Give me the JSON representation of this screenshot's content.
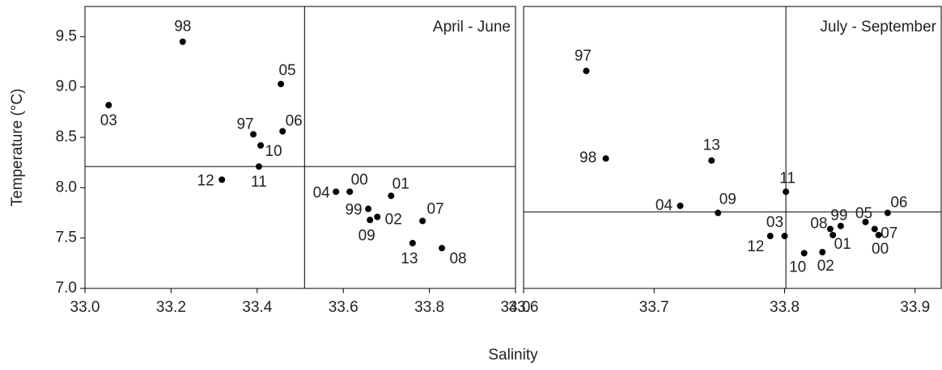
{
  "chart_data": [
    {
      "type": "scatter",
      "title": "April - June",
      "ylabel": "Temperature (°C)",
      "xlim": [
        33.0,
        34.0
      ],
      "ylim": [
        7.0,
        9.8
      ],
      "xticks": [
        {
          "value": 33.0,
          "label": "33.0"
        },
        33.2,
        33.4,
        33.6,
        33.8,
        {
          "value": 34.0,
          "label": "34.0"
        }
      ],
      "yticks": [
        {
          "value": 7.0,
          "label": "7.0"
        },
        7.5,
        {
          "value": 8.0,
          "label": "8.0"
        },
        8.5,
        {
          "value": 9.0,
          "label": "9.0"
        },
        9.5
      ],
      "color": "#000000",
      "labels": [
        "98",
        "05",
        "03",
        "97",
        "06",
        "10",
        "11",
        "12",
        "04",
        "00",
        "01",
        "99",
        "02",
        "09",
        "07",
        "13",
        "08"
      ],
      "x": [
        33.227,
        33.455,
        33.055,
        33.391,
        33.459,
        33.408,
        33.404,
        33.318,
        33.583,
        33.615,
        33.711,
        33.658,
        33.679,
        33.662,
        33.784,
        33.761,
        33.829
      ],
      "values": [
        9.45,
        9.03,
        8.82,
        8.53,
        8.56,
        8.42,
        8.21,
        8.08,
        7.96,
        7.96,
        7.92,
        7.79,
        7.71,
        7.68,
        7.67,
        7.45,
        7.4
      ],
      "reference_lines": {
        "x": 33.51,
        "y": 8.21
      }
    },
    {
      "type": "scatter",
      "title": "July - September",
      "xlim": [
        33.6,
        33.92
      ],
      "ylim": [
        7.0,
        9.8
      ],
      "xticks": [
        33.6,
        33.7,
        33.8,
        33.9
      ],
      "color": "#000000",
      "labels": [
        "97",
        "98",
        "13",
        "04",
        "09",
        "11",
        "03",
        "12",
        "10",
        "02",
        "08",
        "01",
        "99",
        "05",
        "07",
        "00",
        "06"
      ],
      "x": [
        33.648,
        33.663,
        33.744,
        33.72,
        33.749,
        33.801,
        33.8,
        33.789,
        33.815,
        33.829,
        33.835,
        33.837,
        33.843,
        33.862,
        33.869,
        33.872,
        33.879
      ],
      "values": [
        9.16,
        8.29,
        8.27,
        7.82,
        7.75,
        7.96,
        7.52,
        7.52,
        7.35,
        7.36,
        7.59,
        7.53,
        7.62,
        7.66,
        7.59,
        7.53,
        7.75
      ],
      "reference_lines": {
        "x": 33.801,
        "y": 7.76
      }
    }
  ],
  "xlabel": "Salinity"
}
